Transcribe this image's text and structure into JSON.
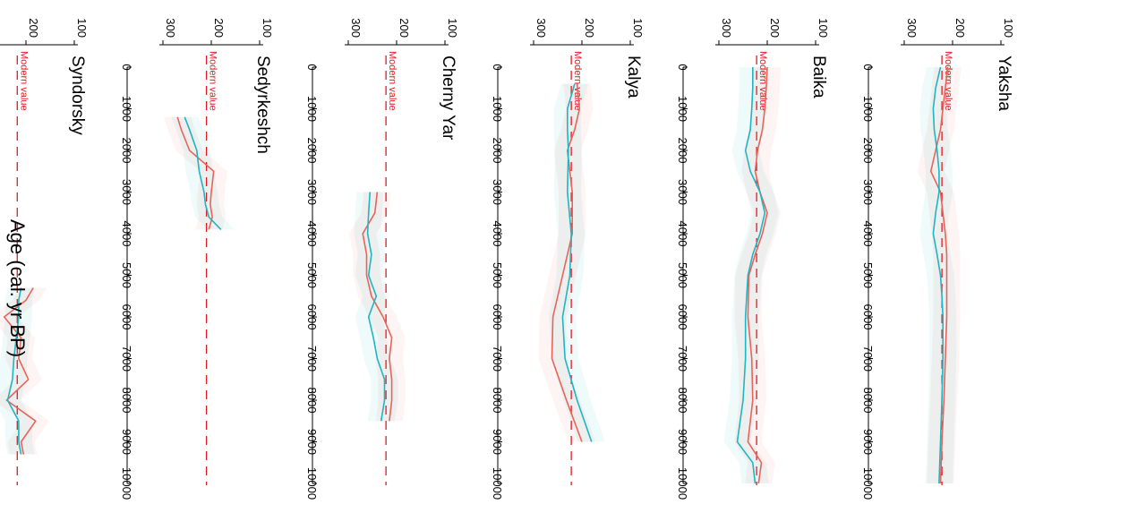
{
  "chart_data": {
    "type": "line",
    "xlabel": "Age (cal. yr BP)",
    "x_ticks": [
      0,
      1000,
      2000,
      3000,
      4000,
      5000,
      6000,
      7000,
      8000,
      9000,
      10000
    ],
    "xlim": [
      0,
      10000
    ],
    "y_ticks": [
      100,
      200,
      300
    ],
    "ylim": [
      100,
      300
    ],
    "modern_value_label": "Modern value",
    "colors": {
      "series_a": "#e8645a",
      "series_b": "#1fb5c1",
      "modern": "#e11b22"
    },
    "panels": [
      {
        "site": "Yaksha",
        "modern_value": 222,
        "series": [
          {
            "x": [
              0,
              500,
              1000,
              1500,
              2000,
              2500,
              3000,
              3500,
              4000,
              4500,
              5000,
              5500,
              6000,
              7000,
              8000,
              9000,
              10000
            ],
            "values": [
              210,
              215,
              220,
              225,
              235,
              245,
              225,
              220,
              215,
              212,
              212,
              212,
              212,
              215,
              218,
              222,
              225
            ]
          },
          {
            "x": [
              0,
              500,
              1000,
              1500,
              2000,
              2500,
              3000,
              3500,
              4000,
              4500,
              5000,
              5500,
              6000,
              7000,
              8000,
              9000,
              10000
            ],
            "values": [
              225,
              235,
              240,
              238,
              232,
              228,
              228,
              235,
              240,
              232,
              225,
              222,
              220,
              220,
              222,
              225,
              228
            ]
          }
        ]
      },
      {
        "site": "Baika",
        "modern_value": 222,
        "series": [
          {
            "x": [
              0,
              500,
              1000,
              1500,
              2000,
              2500,
              3000,
              3500,
              4000,
              4500,
              5000,
              6000,
              7000,
              8000,
              9000,
              9500,
              10000
            ],
            "values": [
              200,
              202,
              205,
              210,
              220,
              225,
              215,
              200,
              210,
              225,
              238,
              240,
              232,
              230,
              240,
              212,
              218
            ]
          },
          {
            "x": [
              0,
              500,
              1000,
              1500,
              2000,
              2500,
              3000,
              3500,
              4000,
              4500,
              5000,
              6000,
              7000,
              8000,
              9000,
              9500,
              10000
            ],
            "values": [
              230,
              230,
              232,
              235,
              245,
              235,
              215,
              205,
              215,
              230,
              240,
              245,
              245,
              250,
              262,
              230,
              225
            ]
          }
        ]
      },
      {
        "site": "Kalya",
        "modern_value": 222,
        "series": [
          {
            "x": [
              400,
              1000,
              1500,
              2000,
              3000,
              4000,
              5000,
              6000,
              7000,
              8000,
              9000
            ],
            "values": [
              210,
              205,
              215,
              230,
              220,
              220,
              240,
              260,
              262,
              232,
              200
            ]
          },
          {
            "x": [
              400,
              1000,
              1500,
              2000,
              3000,
              4000,
              5000,
              6000,
              7000,
              8000,
              9000
            ],
            "values": [
              215,
              230,
              230,
              228,
              230,
              222,
              225,
              240,
              235,
              210,
              180
            ]
          }
        ]
      },
      {
        "site": "Cherny Yar",
        "modern_value": 222,
        "series": [
          {
            "x": [
              3000,
              3500,
              4000,
              4500,
              5000,
              5500,
              6000,
              6500,
              7000,
              7500,
              8000,
              8500
            ],
            "values": [
              240,
              245,
              270,
              262,
              262,
              252,
              228,
              210,
              215,
              210,
              210,
              215
            ]
          },
          {
            "x": [
              3000,
              3500,
              4000,
              4500,
              5000,
              5500,
              6000,
              6500,
              7000,
              7500,
              8000,
              8500
            ],
            "values": [
              255,
              258,
              260,
              252,
              258,
              242,
              258,
              248,
              240,
              225,
              225,
              232
            ]
          }
        ]
      },
      {
        "site": "Sedyrkeshch",
        "modern_value": 210,
        "series": [
          {
            "x": [
              1200,
              1500,
              2000,
              2500,
              3000,
              3300,
              3600,
              3900
            ],
            "values": [
              270,
              262,
              245,
              195,
              200,
              202,
              198,
              205
            ]
          },
          {
            "x": [
              1200,
              1500,
              2000,
              2500,
              3000,
              3300,
              3600,
              3900
            ],
            "values": [
              255,
              245,
              230,
              225,
              215,
              212,
              205,
              180
            ]
          }
        ]
      },
      {
        "site": "Syndorsky",
        "modern_value": 218,
        "series": [
          {
            "x": [
              5300,
              5600,
              6000,
              6500,
              7000,
              7500,
              8000,
              8500,
              9000,
              9300
            ],
            "values": [
              185,
              200,
              245,
              210,
              215,
              195,
              240,
              180,
              210,
              205
            ]
          },
          {
            "x": [
              5300,
              5600,
              6000,
              6500,
              7000,
              7500,
              8000,
              8500,
              9000,
              9300
            ],
            "values": [
              210,
              215,
              215,
              220,
              225,
              228,
              238,
              215,
              215,
              210
            ]
          }
        ]
      }
    ]
  }
}
